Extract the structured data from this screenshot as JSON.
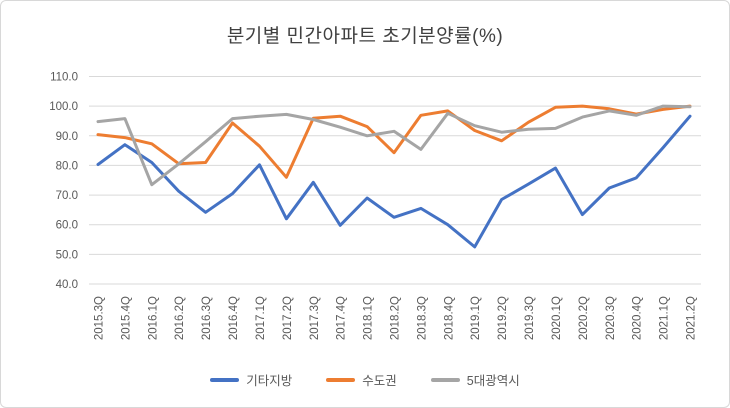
{
  "window": {
    "background": "#ffffff",
    "border_color": "#d8d8d8"
  },
  "chart_data": {
    "type": "line",
    "title": "분기별 민간아파트 초기분양률(%)",
    "title_color": "#404040",
    "categories": [
      "2015.3Q",
      "2015.4Q",
      "2016.1Q",
      "2016.2Q",
      "2016.3Q",
      "2016.4Q",
      "2017.1Q",
      "2017.2Q",
      "2017.3Q",
      "2017.4Q",
      "2018.1Q",
      "2018.2Q",
      "2018.3Q",
      "2018.4Q",
      "2019.1Q",
      "2019.2Q",
      "2019.3Q",
      "2020.1Q",
      "2020.2Q",
      "2020.3Q",
      "2020.4Q",
      "2021.1Q",
      "2021.2Q"
    ],
    "series": [
      {
        "name": "기타지방",
        "color": "#4472C4",
        "values": [
          80.3,
          87.0,
          81.0,
          71.3,
          64.2,
          70.5,
          80.2,
          62.0,
          74.3,
          59.8,
          69.0,
          62.5,
          65.5,
          60.0,
          52.5,
          68.5,
          73.7,
          79.1,
          63.4,
          72.4,
          75.8,
          86.0,
          96.6
        ]
      },
      {
        "name": "수도권",
        "color": "#ED7D31",
        "values": [
          90.4,
          89.4,
          87.3,
          80.6,
          81.0,
          94.3,
          86.5,
          76.0,
          95.9,
          96.6,
          93.1,
          84.3,
          96.9,
          98.4,
          91.8,
          88.3,
          94.6,
          99.6,
          100.0,
          99.1,
          97.3,
          98.9,
          100.0
        ]
      },
      {
        "name": "5대광역시",
        "color": "#A5A5A5",
        "values": [
          94.8,
          95.8,
          73.5,
          80.5,
          88.0,
          95.8,
          96.6,
          97.2,
          95.5,
          92.9,
          90.0,
          91.5,
          85.4,
          97.6,
          93.4,
          91.2,
          92.2,
          92.5,
          96.3,
          98.4,
          96.9,
          100.0,
          99.8
        ]
      }
    ],
    "ylim": [
      40,
      110
    ],
    "ytick_step": 10,
    "ytick_labels": [
      "110.0",
      "100.0",
      "90.0",
      "80.0",
      "70.0",
      "60.0",
      "50.0",
      "40.0"
    ],
    "xlabel": "",
    "ylabel": "",
    "grid": "horizontal",
    "grid_color": "#d9d9d9",
    "axis_label_color": "#595959",
    "legend_position": "bottom"
  }
}
